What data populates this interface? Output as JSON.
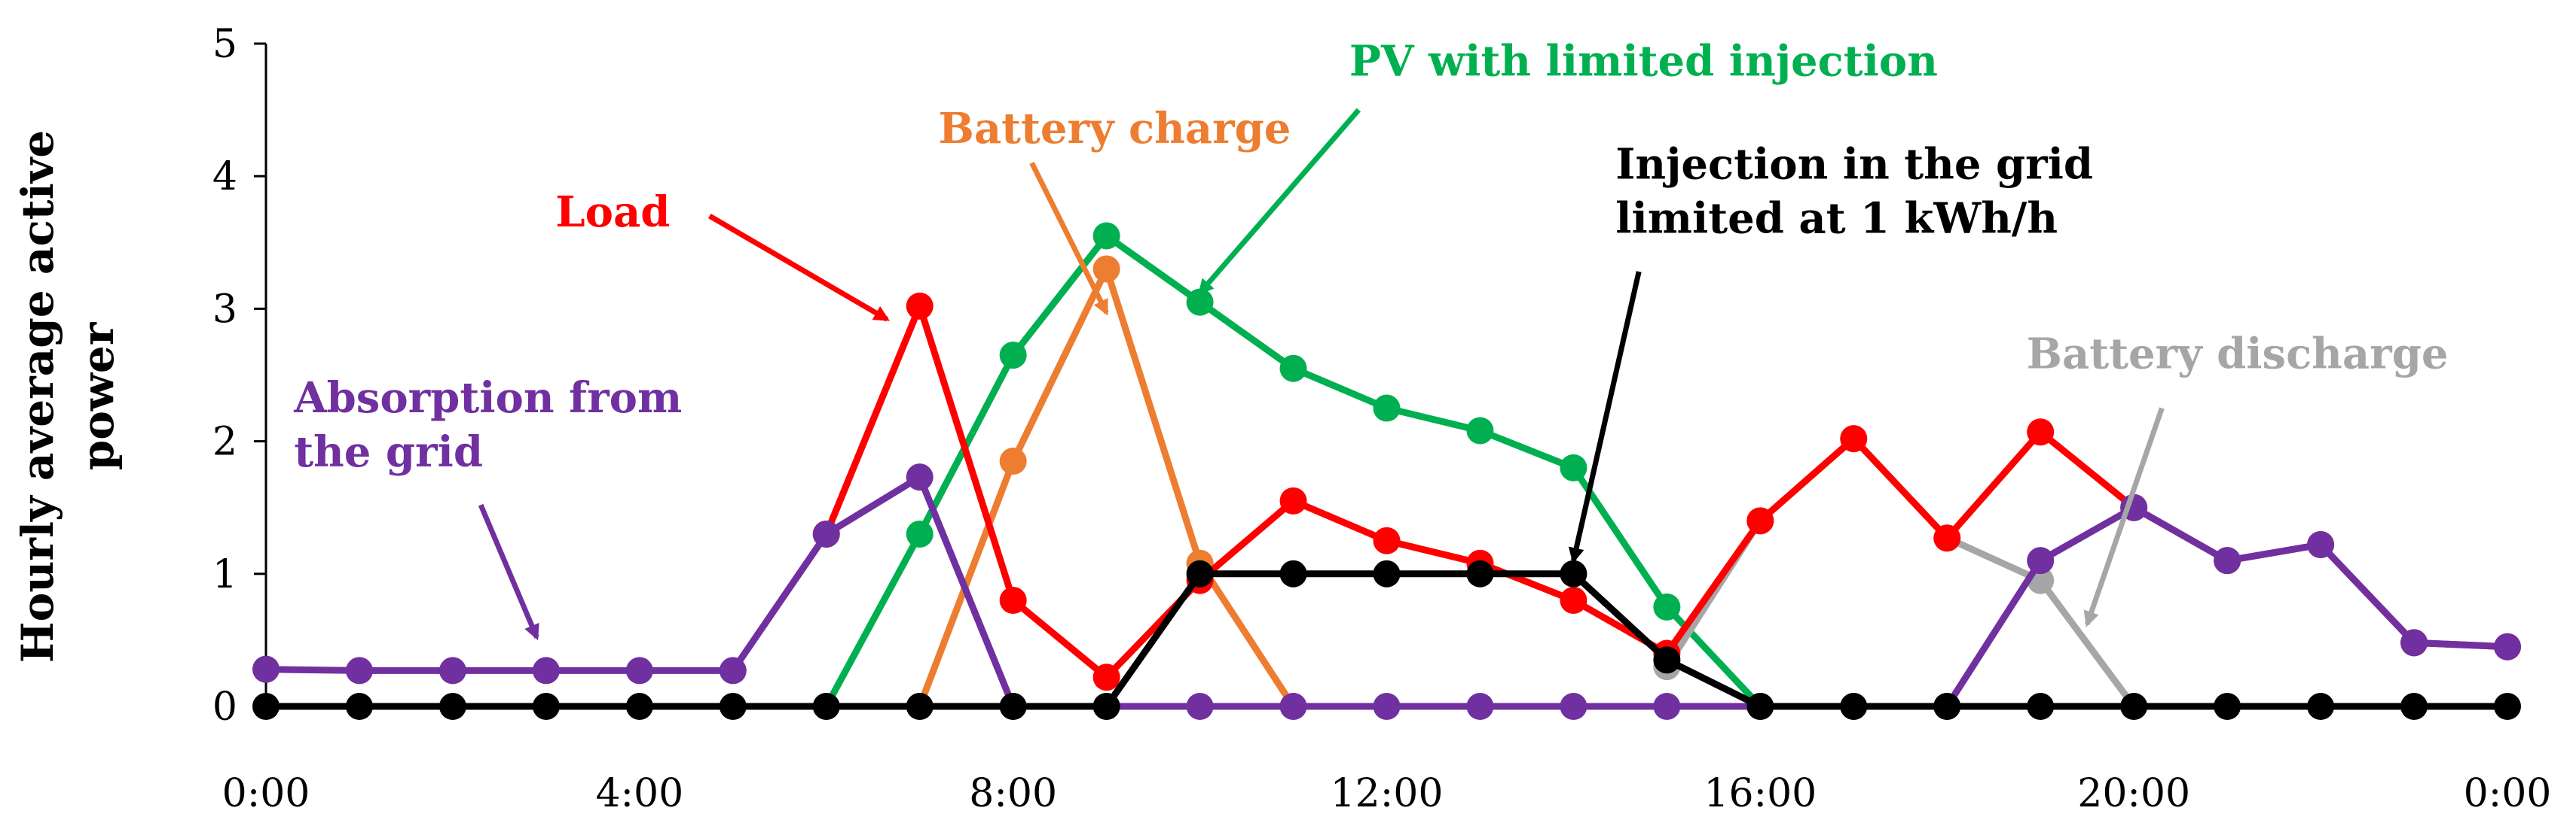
{
  "chart_data": {
    "type": "line",
    "title": "",
    "xlabel": "",
    "ylabel": "Hourly average active power",
    "ylabel_lines": [
      "Hourly average active",
      "power"
    ],
    "ylim": [
      0,
      5
    ],
    "yticks": [
      0,
      1,
      2,
      3,
      4,
      5
    ],
    "xlim": [
      0,
      24
    ],
    "xticks": [
      0,
      4,
      8,
      12,
      16,
      20,
      24
    ],
    "xtick_labels": [
      "0:00",
      "4:00",
      "8:00",
      "12:00",
      "16:00",
      "20:00",
      "0:00"
    ],
    "grid": false,
    "legend": "none (series labelled with arrow annotations)",
    "series": [
      {
        "name": "PV with limited injection",
        "color": "#00b050",
        "points": [
          [
            6,
            0
          ],
          [
            7,
            1.3
          ],
          [
            8,
            2.65
          ],
          [
            9,
            3.55
          ],
          [
            10,
            3.05
          ],
          [
            11,
            2.55
          ],
          [
            12,
            2.25
          ],
          [
            13,
            2.08
          ],
          [
            14,
            1.8
          ],
          [
            15,
            0.75
          ],
          [
            16,
            0
          ]
        ]
      },
      {
        "name": "Battery charge",
        "color": "#ed7d31",
        "points": [
          [
            7,
            0
          ],
          [
            8,
            1.85
          ],
          [
            9,
            3.3
          ],
          [
            10,
            1.08
          ],
          [
            11,
            0
          ]
        ]
      },
      {
        "name": "Battery discharge",
        "color": "#a6a6a6",
        "points": [
          [
            15,
            0.3
          ],
          [
            16,
            1.4
          ],
          [
            17,
            2.02
          ],
          [
            18,
            1.27
          ],
          [
            19,
            0.95
          ],
          [
            20,
            0
          ]
        ]
      },
      {
        "name": "Load",
        "color": "#ff0000",
        "points": [
          [
            6,
            1.3
          ],
          [
            7,
            3.02
          ],
          [
            8,
            0.8
          ],
          [
            9,
            0.22
          ],
          [
            10,
            0.95
          ],
          [
            11,
            1.55
          ],
          [
            12,
            1.25
          ],
          [
            13,
            1.08
          ],
          [
            14,
            0.8
          ],
          [
            15,
            0.4
          ],
          [
            16,
            1.4
          ],
          [
            17,
            2.02
          ],
          [
            18,
            1.27
          ],
          [
            19,
            2.07
          ],
          [
            20,
            1.5
          ],
          [
            21,
            1.1
          ],
          [
            22,
            1.22
          ],
          [
            23,
            0.48
          ],
          [
            24,
            0.45
          ]
        ]
      },
      {
        "name": "Absorption from the grid",
        "color": "#7030a0",
        "points": [
          [
            0,
            0.28
          ],
          [
            1,
            0.27
          ],
          [
            2,
            0.27
          ],
          [
            3,
            0.27
          ],
          [
            4,
            0.27
          ],
          [
            5,
            0.27
          ],
          [
            6,
            1.3
          ],
          [
            7,
            1.73
          ],
          [
            8,
            0
          ],
          [
            9,
            0
          ],
          [
            10,
            0
          ],
          [
            11,
            0
          ],
          [
            12,
            0
          ],
          [
            13,
            0
          ],
          [
            14,
            0
          ],
          [
            15,
            0
          ],
          [
            16,
            0
          ],
          [
            17,
            0
          ],
          [
            18,
            0
          ],
          [
            19,
            1.1
          ],
          [
            20,
            1.5
          ],
          [
            21,
            1.1
          ],
          [
            22,
            1.22
          ],
          [
            23,
            0.48
          ],
          [
            24,
            0.45
          ]
        ]
      },
      {
        "name": "Injection in the grid limited at 1 kWh/h",
        "color": "#000000",
        "points": [
          [
            0,
            0
          ],
          [
            1,
            0
          ],
          [
            2,
            0
          ],
          [
            3,
            0
          ],
          [
            4,
            0
          ],
          [
            5,
            0
          ],
          [
            6,
            0
          ],
          [
            7,
            0
          ],
          [
            8,
            0
          ],
          [
            9,
            0
          ],
          [
            10,
            1
          ],
          [
            11,
            1
          ],
          [
            12,
            1
          ],
          [
            13,
            1
          ],
          [
            14,
            1
          ],
          [
            15,
            0.35
          ],
          [
            16,
            0
          ],
          [
            17,
            0
          ],
          [
            18,
            0
          ],
          [
            19,
            0
          ],
          [
            20,
            0
          ],
          [
            21,
            0
          ],
          [
            22,
            0
          ],
          [
            23,
            0
          ],
          [
            24,
            0
          ]
        ]
      }
    ],
    "annotations": [
      {
        "name": "pv",
        "lines": [
          "PV with limited injection"
        ],
        "color": "#00b050",
        "anchor": "start",
        "text_pos": [
          11.6,
          4.76
        ],
        "arrow_from": [
          11.7,
          4.5
        ],
        "arrow_to": [
          10.0,
          3.12
        ]
      },
      {
        "name": "battery-charge",
        "lines": [
          "Battery charge"
        ],
        "color": "#ed7d31",
        "anchor": "start",
        "text_pos": [
          7.2,
          4.25
        ],
        "arrow_from": [
          8.2,
          4.1
        ],
        "arrow_to": [
          9.0,
          2.97
        ]
      },
      {
        "name": "load",
        "lines": [
          "Load"
        ],
        "color": "#ff0000",
        "anchor": "start",
        "text_pos": [
          3.1,
          3.62
        ],
        "arrow_from": [
          4.75,
          3.7
        ],
        "arrow_to": [
          6.65,
          2.92
        ]
      },
      {
        "name": "injection",
        "lines": [
          "Injection in the grid",
          "limited at 1 kWh/h"
        ],
        "color": "#000000",
        "anchor": "start",
        "text_pos": [
          14.45,
          3.98
        ],
        "arrow_from": [
          14.7,
          3.28
        ],
        "arrow_to": [
          14.0,
          1.1
        ]
      },
      {
        "name": "battery-discharge",
        "lines": [
          "Battery discharge"
        ],
        "color": "#a6a6a6",
        "anchor": "start",
        "text_pos": [
          18.85,
          2.55
        ],
        "arrow_from": [
          20.3,
          2.25
        ],
        "arrow_to": [
          19.5,
          0.62
        ]
      },
      {
        "name": "absorption",
        "lines": [
          "Absorption from",
          "the grid"
        ],
        "color": "#7030a0",
        "anchor": "start",
        "text_pos": [
          0.3,
          2.22
        ],
        "arrow_from": [
          2.3,
          1.52
        ],
        "arrow_to": [
          2.9,
          0.52
        ]
      }
    ]
  }
}
